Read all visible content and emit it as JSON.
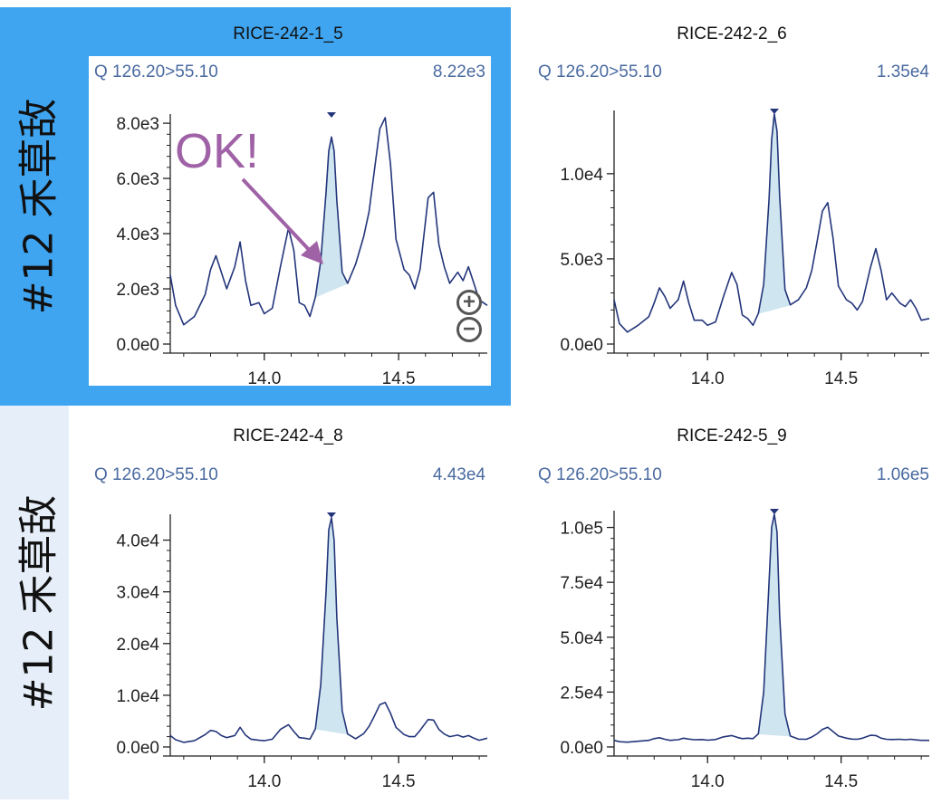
{
  "rows": [
    {
      "label": "#12 禾草敌"
    },
    {
      "label": "#12 禾草敌"
    }
  ],
  "annotation": {
    "text": "OK!"
  },
  "chart_data": [
    {
      "type": "line",
      "title": "RICE-242-1_5",
      "transition": "Q 126.20>55.10",
      "max_intensity": "8.22e3",
      "selected": true,
      "x_ticks": [
        "14.0",
        "14.5"
      ],
      "y_ticks": [
        "0.0e0",
        "2.0e3",
        "4.0e3",
        "6.0e3",
        "8.0e3"
      ],
      "xlim": [
        13.65,
        14.83
      ],
      "ylim": [
        0,
        8200
      ],
      "peak": {
        "apex": 14.25,
        "start": 14.19,
        "end": 14.31
      },
      "x": [
        13.65,
        13.67,
        13.7,
        13.74,
        13.78,
        13.8,
        13.82,
        13.84,
        13.86,
        13.89,
        13.91,
        13.93,
        13.95,
        13.98,
        14.0,
        14.03,
        14.06,
        14.09,
        14.11,
        14.13,
        14.15,
        14.17,
        14.19,
        14.21,
        14.23,
        14.24,
        14.25,
        14.26,
        14.27,
        14.29,
        14.31,
        14.34,
        14.37,
        14.39,
        14.41,
        14.43,
        14.45,
        14.47,
        14.49,
        14.52,
        14.54,
        14.56,
        14.58,
        14.61,
        14.63,
        14.65,
        14.67,
        14.69,
        14.72,
        14.74,
        14.76,
        14.78,
        14.8,
        14.83
      ],
      "y": [
        2500,
        1400,
        700,
        1000,
        1800,
        2700,
        3200,
        2600,
        2000,
        2800,
        3700,
        2300,
        1400,
        1500,
        1100,
        1300,
        2800,
        4200,
        3400,
        1500,
        1400,
        1000,
        1700,
        3000,
        5500,
        7000,
        7500,
        7000,
        5200,
        2600,
        2200,
        2900,
        3900,
        4800,
        6300,
        7800,
        8200,
        6500,
        3800,
        2700,
        2500,
        2000,
        2700,
        5300,
        5500,
        3600,
        2800,
        2200,
        2600,
        2300,
        2800,
        2200,
        1600,
        1400
      ]
    },
    {
      "type": "line",
      "title": "RICE-242-2_6",
      "transition": "Q 126.20>55.10",
      "max_intensity": "1.35e4",
      "selected": false,
      "x_ticks": [
        "14.0",
        "14.5"
      ],
      "y_ticks": [
        "0.0e0",
        "5.0e3",
        "1.0e4"
      ],
      "xlim": [
        13.65,
        14.83
      ],
      "ylim": [
        0,
        13500
      ],
      "peak": {
        "apex": 14.25,
        "start": 14.19,
        "end": 14.31
      },
      "x": [
        13.65,
        13.67,
        13.7,
        13.74,
        13.78,
        13.8,
        13.82,
        13.84,
        13.86,
        13.89,
        13.91,
        13.93,
        13.95,
        13.98,
        14.0,
        14.03,
        14.06,
        14.09,
        14.11,
        14.13,
        14.15,
        14.17,
        14.19,
        14.21,
        14.23,
        14.24,
        14.25,
        14.26,
        14.27,
        14.29,
        14.31,
        14.34,
        14.37,
        14.39,
        14.41,
        14.43,
        14.45,
        14.47,
        14.49,
        14.52,
        14.54,
        14.56,
        14.58,
        14.61,
        14.63,
        14.65,
        14.67,
        14.69,
        14.72,
        14.74,
        14.76,
        14.78,
        14.8,
        14.83
      ],
      "y": [
        2600,
        1200,
        700,
        1100,
        1600,
        2400,
        3300,
        2800,
        2100,
        2600,
        3700,
        2400,
        1400,
        1400,
        1100,
        1300,
        2800,
        4200,
        3500,
        1700,
        1500,
        1100,
        1800,
        3500,
        8500,
        12000,
        13500,
        12500,
        8700,
        3200,
        2300,
        2600,
        3300,
        4300,
        6000,
        7800,
        8300,
        6200,
        3400,
        2600,
        2400,
        2000,
        2500,
        4500,
        5600,
        4300,
        2600,
        3000,
        2400,
        2200,
        2600,
        2100,
        1400,
        1500
      ]
    },
    {
      "type": "line",
      "title": "RICE-242-4_8",
      "transition": "Q 126.20>55.10",
      "max_intensity": "4.43e4",
      "selected": false,
      "x_ticks": [
        "14.0",
        "14.5"
      ],
      "y_ticks": [
        "0.0e0",
        "1.0e4",
        "2.0e4",
        "3.0e4",
        "4.0e4"
      ],
      "xlim": [
        13.65,
        14.83
      ],
      "ylim": [
        0,
        44300
      ],
      "peak": {
        "apex": 14.25,
        "start": 14.18,
        "end": 14.31
      },
      "x": [
        13.65,
        13.67,
        13.7,
        13.74,
        13.78,
        13.8,
        13.82,
        13.84,
        13.86,
        13.89,
        13.91,
        13.93,
        13.95,
        13.98,
        14.0,
        14.03,
        14.06,
        14.09,
        14.11,
        14.13,
        14.15,
        14.17,
        14.19,
        14.21,
        14.23,
        14.24,
        14.25,
        14.26,
        14.27,
        14.29,
        14.31,
        14.34,
        14.37,
        14.39,
        14.41,
        14.43,
        14.45,
        14.47,
        14.49,
        14.52,
        14.54,
        14.56,
        14.58,
        14.61,
        14.63,
        14.65,
        14.67,
        14.69,
        14.72,
        14.74,
        14.76,
        14.78,
        14.8,
        14.83
      ],
      "y": [
        2200,
        1400,
        900,
        1200,
        2400,
        3200,
        3000,
        2200,
        1800,
        2200,
        3800,
        2300,
        1500,
        1300,
        1200,
        1500,
        3400,
        4300,
        3000,
        1800,
        1700,
        1500,
        3500,
        12000,
        30000,
        42000,
        44300,
        40000,
        25000,
        7000,
        2500,
        1600,
        2600,
        4000,
        6000,
        8200,
        8600,
        6500,
        3800,
        2400,
        2000,
        2000,
        3200,
        5300,
        5200,
        3400,
        2500,
        2000,
        2300,
        1900,
        2200,
        1700,
        1300,
        1700
      ]
    },
    {
      "type": "line",
      "title": "RICE-242-5_9",
      "transition": "Q 126.20>55.10",
      "max_intensity": "1.06e5",
      "selected": false,
      "x_ticks": [
        "14.0",
        "14.5"
      ],
      "y_ticks": [
        "0.0e0",
        "2.5e4",
        "5.0e4",
        "7.5e4",
        "1.0e5"
      ],
      "xlim": [
        13.65,
        14.83
      ],
      "ylim": [
        0,
        106000
      ],
      "peak": {
        "apex": 14.25,
        "start": 14.18,
        "end": 14.31
      },
      "x": [
        13.65,
        13.67,
        13.7,
        13.74,
        13.78,
        13.8,
        13.82,
        13.84,
        13.86,
        13.89,
        13.91,
        13.93,
        13.95,
        13.98,
        14.0,
        14.03,
        14.06,
        14.09,
        14.11,
        14.13,
        14.15,
        14.17,
        14.19,
        14.21,
        14.23,
        14.24,
        14.25,
        14.26,
        14.27,
        14.29,
        14.31,
        14.34,
        14.37,
        14.39,
        14.41,
        14.43,
        14.45,
        14.47,
        14.49,
        14.52,
        14.54,
        14.56,
        14.58,
        14.61,
        14.63,
        14.65,
        14.67,
        14.69,
        14.72,
        14.74,
        14.76,
        14.78,
        14.8,
        14.83
      ],
      "y": [
        3000,
        2400,
        2200,
        2600,
        3000,
        3800,
        4200,
        3500,
        3000,
        3300,
        4000,
        3600,
        3300,
        3400,
        3100,
        3400,
        4600,
        5200,
        4400,
        3800,
        4000,
        3800,
        6000,
        25000,
        75000,
        100000,
        106000,
        98000,
        60000,
        15000,
        5000,
        3600,
        3500,
        4500,
        6000,
        8000,
        9000,
        7000,
        5000,
        4000,
        3600,
        3500,
        4000,
        5300,
        5200,
        4000,
        3500,
        3400,
        3500,
        3300,
        3500,
        3200,
        3000,
        3000
      ]
    }
  ]
}
